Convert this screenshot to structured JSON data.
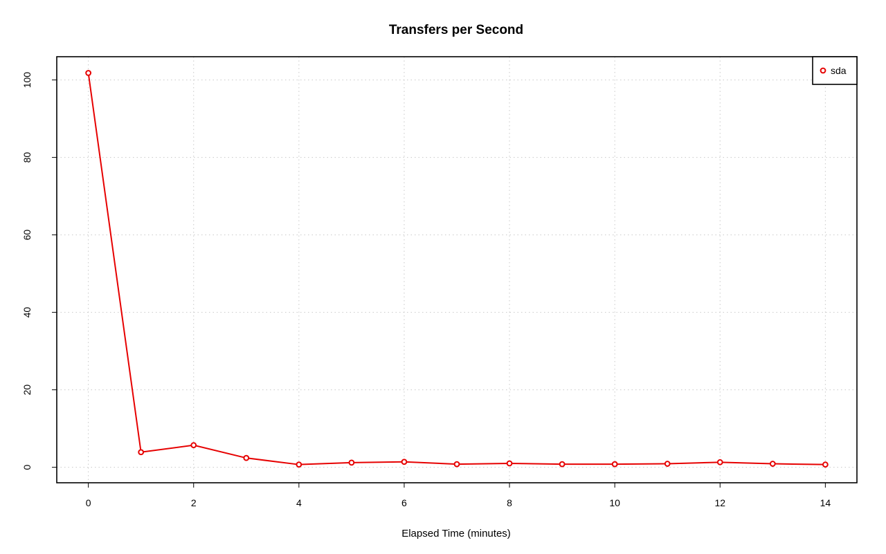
{
  "chart_data": {
    "type": "line",
    "title": "Transfers per Second",
    "xlabel": "Elapsed Time (minutes)",
    "ylabel": "",
    "xlim": [
      -0.6,
      14.6
    ],
    "ylim": [
      -4,
      106
    ],
    "x_ticks": [
      0,
      2,
      4,
      6,
      8,
      10,
      12,
      14
    ],
    "y_ticks": [
      0,
      20,
      40,
      60,
      80,
      100
    ],
    "grid": true,
    "legend_position": "top-right",
    "x": [
      0,
      1,
      2,
      3,
      4,
      5,
      6,
      7,
      8,
      9,
      10,
      11,
      12,
      13,
      14
    ],
    "series": [
      {
        "name": "sda",
        "color": "#e60000",
        "marker": "open-circle",
        "values": [
          101.8,
          3.9,
          5.7,
          2.4,
          0.7,
          1.2,
          1.4,
          0.8,
          1.0,
          0.8,
          0.8,
          0.9,
          1.3,
          0.9,
          0.7
        ]
      }
    ]
  }
}
